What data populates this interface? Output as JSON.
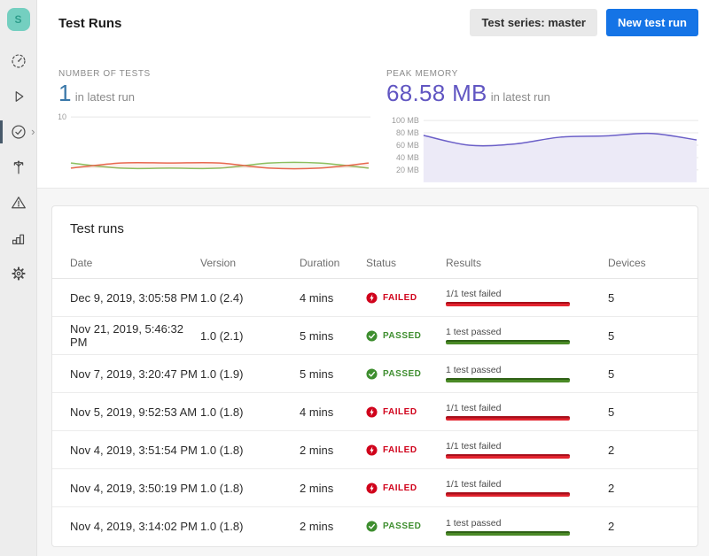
{
  "header": {
    "title": "Test Runs",
    "series_button_label": "Test series: master",
    "new_test_run_label": "New test run"
  },
  "sidebar": {
    "avatar_letter": "S",
    "items": [
      {
        "id": "dashboard",
        "icon": "gauge-icon",
        "selected": false
      },
      {
        "id": "runs",
        "icon": "play-icon",
        "selected": false
      },
      {
        "id": "tests",
        "icon": "check-circle-icon",
        "selected": true
      },
      {
        "id": "distribution",
        "icon": "branch-icon",
        "selected": false
      },
      {
        "id": "issues",
        "icon": "warning-icon",
        "selected": false
      },
      {
        "id": "analytics",
        "icon": "bar-chart-icon",
        "selected": false
      },
      {
        "id": "settings",
        "icon": "gear-icon",
        "selected": false
      }
    ]
  },
  "metrics": [
    {
      "label": "NUMBER OF TESTS",
      "value": "1",
      "suffix": "in latest run",
      "value_color": "#3a78a9"
    },
    {
      "label": "PEAK MEMORY",
      "value": "68.58 MB",
      "suffix": "in latest run",
      "value_color": "#6156c2"
    }
  ],
  "chart_data": [
    {
      "type": "line",
      "title": "NUMBER OF TESTS",
      "x": [
        1,
        2,
        3,
        4,
        5,
        6,
        7
      ],
      "series": [
        {
          "name": "passed",
          "color": "#8cbf5f",
          "values": [
            1,
            0,
            0,
            0,
            1,
            1,
            0
          ]
        },
        {
          "name": "failed",
          "color": "#e8684f",
          "values": [
            0,
            1,
            1,
            1,
            0,
            0,
            1
          ]
        }
      ],
      "ylim": [
        0,
        10
      ],
      "yticks": [
        10
      ],
      "ytick_suffix": "",
      "grid": true,
      "legend": "none"
    },
    {
      "type": "area",
      "title": "PEAK MEMORY",
      "x": [
        1,
        2,
        3,
        4,
        5,
        6,
        7
      ],
      "series": [
        {
          "name": "peak_memory_mb",
          "color": "#6b5fc8",
          "fill": "#eceaf7",
          "values": [
            76,
            60,
            62,
            73,
            75,
            79,
            68.58
          ]
        }
      ],
      "ylim": [
        0,
        100
      ],
      "yticks": [
        100,
        80,
        60,
        40,
        20
      ],
      "ytick_suffix": " MB",
      "grid": true,
      "legend": "none"
    }
  ],
  "table": {
    "title": "Test runs",
    "columns": [
      "Date",
      "Version",
      "Duration",
      "Status",
      "Results",
      "Devices"
    ],
    "rows": [
      {
        "date": "Dec 9, 2019, 3:05:58 PM",
        "version": "1.0 (2.4)",
        "duration": "4 mins",
        "status": "FAILED",
        "result_label": "1/1 test failed",
        "devices": "5"
      },
      {
        "date": "Nov 21, 2019, 5:46:32 PM",
        "version": "1.0 (2.1)",
        "duration": "5 mins",
        "status": "PASSED",
        "result_label": "1 test passed",
        "devices": "5"
      },
      {
        "date": "Nov 7, 2019, 3:20:47 PM",
        "version": "1.0 (1.9)",
        "duration": "5 mins",
        "status": "PASSED",
        "result_label": "1 test passed",
        "devices": "5"
      },
      {
        "date": "Nov 5, 2019, 9:52:53 AM",
        "version": "1.0 (1.8)",
        "duration": "4 mins",
        "status": "FAILED",
        "result_label": "1/1 test failed",
        "devices": "5"
      },
      {
        "date": "Nov 4, 2019, 3:51:54 PM",
        "version": "1.0 (1.8)",
        "duration": "2 mins",
        "status": "FAILED",
        "result_label": "1/1 test failed",
        "devices": "2"
      },
      {
        "date": "Nov 4, 2019, 3:50:19 PM",
        "version": "1.0 (1.8)",
        "duration": "2 mins",
        "status": "FAILED",
        "result_label": "1/1 test failed",
        "devices": "2"
      },
      {
        "date": "Nov 4, 2019, 3:14:02 PM",
        "version": "1.0 (1.8)",
        "duration": "2 mins",
        "status": "PASSED",
        "result_label": "1 test passed",
        "devices": "2"
      }
    ]
  },
  "colors": {
    "accent_blue": "#1574e6",
    "failed_red": "#d0021b",
    "passed_green": "#3e8e2f",
    "chart_red": "#e8684f",
    "chart_green": "#8cbf5f",
    "chart_purple": "#6b5fc8",
    "sidebar_bg": "#ededed",
    "avatar_teal": "#74cfc0"
  }
}
